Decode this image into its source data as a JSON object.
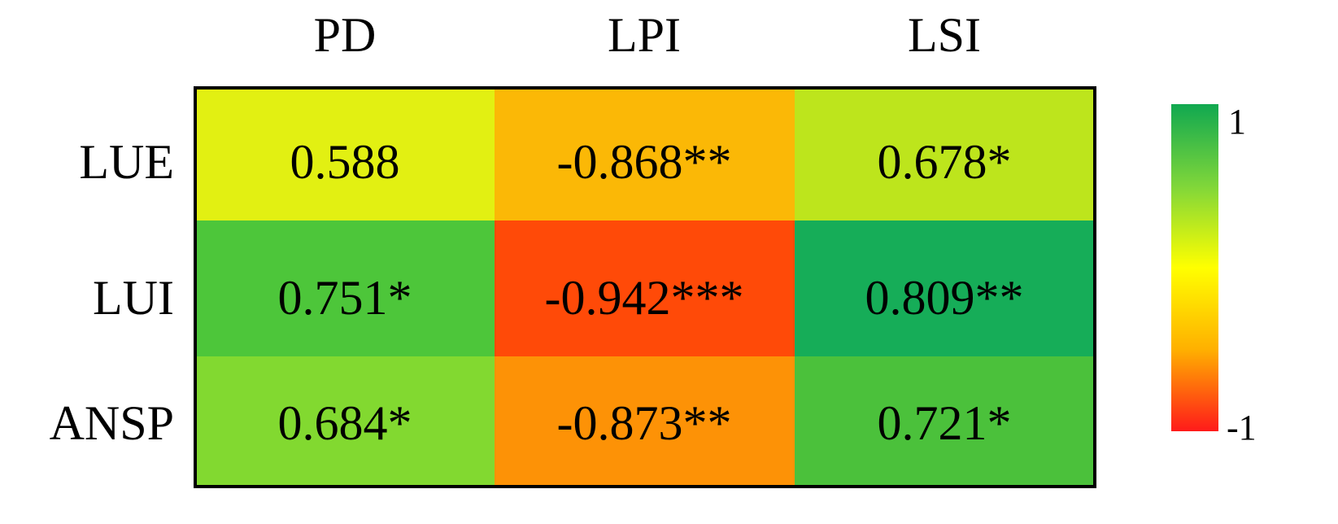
{
  "chart_data": {
    "type": "heatmap",
    "columns": [
      "PD",
      "LPI",
      "LSI"
    ],
    "rows": [
      "LUE",
      "LUI",
      "ANSP"
    ],
    "values": [
      [
        0.588,
        -0.868,
        0.678
      ],
      [
        0.751,
        -0.942,
        0.809
      ],
      [
        0.684,
        -0.873,
        0.721
      ]
    ],
    "labels": [
      [
        "0.588",
        "-0.868**",
        "0.678*"
      ],
      [
        "0.751*",
        "-0.942***",
        "0.809**"
      ],
      [
        "0.684*",
        "-0.873**",
        "0.721*"
      ]
    ],
    "colorbar": {
      "min": -1,
      "max": 1,
      "min_label": "-1",
      "max_label": "1",
      "colors": [
        "#ff1a1a",
        "#ffb000",
        "#ffff00",
        "#7fd63a",
        "#10a850"
      ]
    },
    "cell_colors": [
      [
        "#e2f012",
        "#fbb806",
        "#bde51c"
      ],
      [
        "#4dc63a",
        "#ff4a08",
        "#16ad58"
      ],
      [
        "#82d930",
        "#fd9206",
        "#4bc13b"
      ]
    ]
  }
}
